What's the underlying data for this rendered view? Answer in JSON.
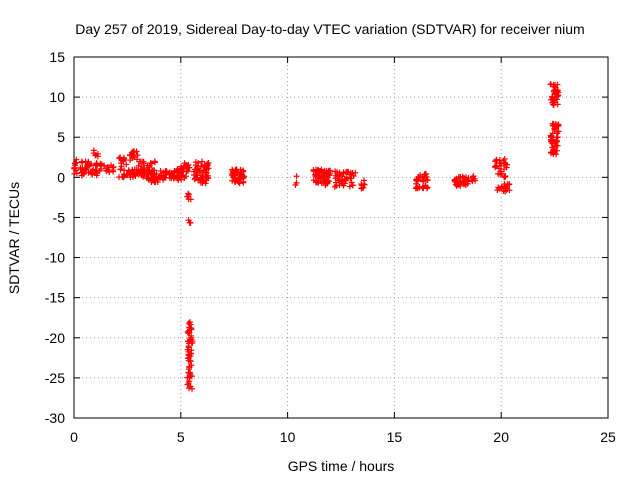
{
  "chart_data": {
    "type": "scatter",
    "title": "Day 257 of 2019, Sidereal Day-to-day VTEC variation (SDTVAR) for receiver nium",
    "xlabel": "GPS time / hours",
    "ylabel": "SDTVAR / TECUs",
    "xlim": [
      0,
      25
    ],
    "ylim": [
      -30,
      15
    ],
    "xticks": [
      0,
      5,
      10,
      15,
      20,
      25
    ],
    "yticks": [
      15,
      10,
      5,
      0,
      -5,
      -10,
      -15,
      -20,
      -25,
      -30
    ],
    "xtick_labels": [
      "0",
      "5",
      "10",
      "15",
      "20",
      "25"
    ],
    "ytick_labels": [
      "15",
      "10",
      "5",
      "0",
      "-5",
      "-10",
      "-15",
      "-20",
      "-25",
      "-30"
    ],
    "grid": true,
    "marker": "+",
    "color": "#ff0000",
    "clusters": [
      {
        "x0": 0.0,
        "x1": 0.2,
        "y0": 0.3,
        "y1": 2.3,
        "n": 10
      },
      {
        "x0": 0.3,
        "x1": 0.9,
        "y0": 0.2,
        "y1": 2.0,
        "n": 30
      },
      {
        "x0": 0.9,
        "x1": 1.2,
        "y0": 2.6,
        "y1": 3.4,
        "n": 6
      },
      {
        "x0": 1.0,
        "x1": 1.6,
        "y0": 0.2,
        "y1": 1.8,
        "n": 20
      },
      {
        "x0": 1.6,
        "x1": 1.9,
        "y0": 0.5,
        "y1": 1.5,
        "n": 8
      },
      {
        "x0": 2.1,
        "x1": 2.5,
        "y0": 0.0,
        "y1": 2.5,
        "n": 20
      },
      {
        "x0": 2.6,
        "x1": 3.0,
        "y0": 2.0,
        "y1": 3.4,
        "n": 15
      },
      {
        "x0": 2.5,
        "x1": 3.5,
        "y0": 0.0,
        "y1": 1.0,
        "n": 40
      },
      {
        "x0": 3.0,
        "x1": 3.8,
        "y0": 0.6,
        "y1": 2.0,
        "n": 25
      },
      {
        "x0": 3.4,
        "x1": 4.2,
        "y0": -0.6,
        "y1": 0.8,
        "n": 40
      },
      {
        "x0": 4.2,
        "x1": 4.9,
        "y0": -0.2,
        "y1": 0.8,
        "n": 30
      },
      {
        "x0": 4.8,
        "x1": 5.4,
        "y0": -0.4,
        "y1": 1.8,
        "n": 40
      },
      {
        "x0": 5.3,
        "x1": 5.5,
        "y0": -3.0,
        "y1": -2.0,
        "n": 6
      },
      {
        "x0": 5.35,
        "x1": 5.5,
        "y0": -5.8,
        "y1": -5.3,
        "n": 3
      },
      {
        "x0": 5.3,
        "x1": 5.55,
        "y0": -26.6,
        "y1": -18.0,
        "n": 55
      },
      {
        "x0": 5.6,
        "x1": 6.3,
        "y0": -0.9,
        "y1": 2.0,
        "n": 60
      },
      {
        "x0": 7.4,
        "x1": 8.0,
        "y0": -0.8,
        "y1": 1.0,
        "n": 45
      },
      {
        "x0": 10.3,
        "x1": 10.45,
        "y0": -1.5,
        "y1": 0.3,
        "n": 3
      },
      {
        "x0": 11.2,
        "x1": 12.0,
        "y0": -1.0,
        "y1": 1.0,
        "n": 55
      },
      {
        "x0": 12.2,
        "x1": 13.2,
        "y0": -1.2,
        "y1": 0.8,
        "n": 45
      },
      {
        "x0": 13.4,
        "x1": 13.7,
        "y0": -1.8,
        "y1": -0.2,
        "n": 8
      },
      {
        "x0": 16.0,
        "x1": 16.6,
        "y0": -1.4,
        "y1": 0.6,
        "n": 35
      },
      {
        "x0": 17.8,
        "x1": 18.5,
        "y0": -1.1,
        "y1": 0.1,
        "n": 35
      },
      {
        "x0": 18.6,
        "x1": 18.9,
        "y0": -0.6,
        "y1": 0.4,
        "n": 6
      },
      {
        "x0": 19.7,
        "x1": 20.0,
        "y0": 0.3,
        "y1": 2.2,
        "n": 15
      },
      {
        "x0": 19.8,
        "x1": 20.4,
        "y0": -1.8,
        "y1": -0.8,
        "n": 20
      },
      {
        "x0": 20.0,
        "x1": 20.3,
        "y0": 0.0,
        "y1": 2.5,
        "n": 12
      },
      {
        "x0": 22.3,
        "x1": 22.7,
        "y0": 9.0,
        "y1": 11.8,
        "n": 35
      },
      {
        "x0": 22.3,
        "x1": 22.7,
        "y0": 2.8,
        "y1": 6.8,
        "n": 55
      }
    ]
  }
}
